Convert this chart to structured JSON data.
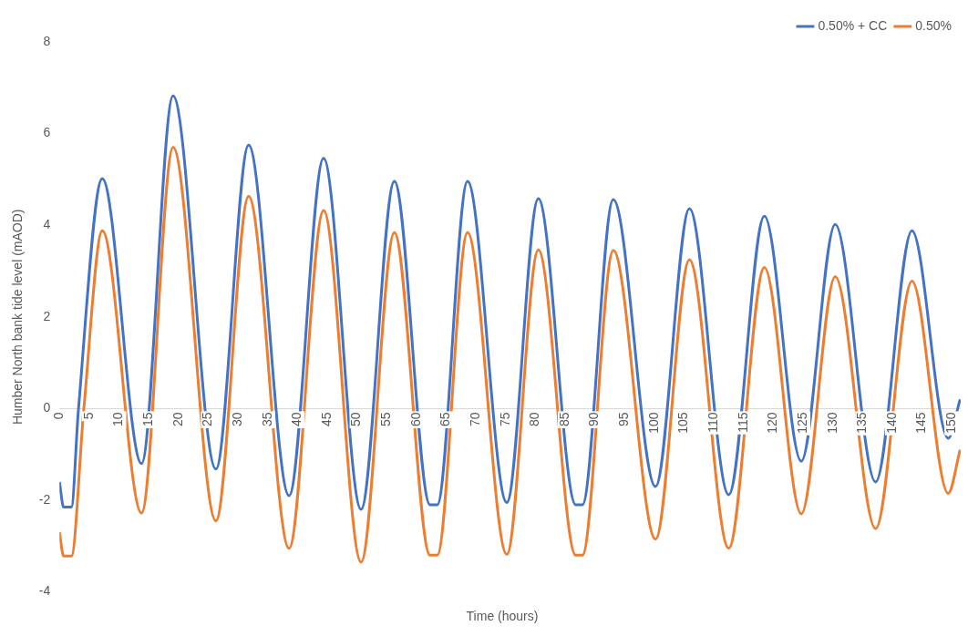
{
  "chart_data": {
    "type": "line",
    "xlabel": "Time (hours)",
    "ylabel": "Humber North bank tide level (mAOD)",
    "xlim": [
      0,
      151.5
    ],
    "xticks": [
      0,
      5,
      10,
      15,
      20,
      25,
      30,
      35,
      40,
      45,
      50,
      55,
      60,
      65,
      70,
      75,
      80,
      85,
      90,
      95,
      100,
      105,
      110,
      115,
      120,
      125,
      130,
      135,
      140,
      145,
      150
    ],
    "ylim": [
      -4,
      8
    ],
    "yticks": [
      -4,
      -2,
      0,
      2,
      4,
      6,
      8
    ],
    "grid": false,
    "legend": "top right",
    "marker": "none",
    "line_style": "solid",
    "series": [
      {
        "name": "0.50% + CC",
        "color": "#4472c4",
        "x": [
          0,
          0.7,
          2,
          3.2,
          7.2,
          13.8,
          19.1,
          26.3,
          31.8,
          38.6,
          44.4,
          50.7,
          56.3,
          62.3,
          63.5,
          68.6,
          75.2,
          80.5,
          86.8,
          87.9,
          93.1,
          100.2,
          105.9,
          112.5,
          118.5,
          124.7,
          130.4,
          137.2,
          143.3,
          149.4,
          151.4
        ],
        "values": [
          -1.6,
          -2.15,
          -2.15,
          0,
          5.02,
          -1.2,
          6.82,
          -1.32,
          5.75,
          -1.9,
          5.46,
          -2.2,
          4.96,
          -2.1,
          -2.1,
          4.96,
          -2.05,
          4.58,
          -2.1,
          -2.1,
          4.56,
          -1.7,
          4.36,
          -1.88,
          4.2,
          -1.15,
          4.02,
          -1.6,
          3.88,
          -0.65,
          0.2
        ]
      },
      {
        "name": "0.50%",
        "color": "#ed7d31",
        "x": [
          0,
          0.7,
          2,
          4.1,
          7.2,
          13.8,
          19.1,
          26.3,
          31.8,
          38.6,
          44.4,
          50.7,
          56.3,
          62.3,
          63.5,
          68.6,
          75.2,
          80.5,
          86.8,
          87.9,
          93.1,
          100.2,
          105.9,
          112.5,
          118.5,
          124.7,
          130.4,
          137.2,
          143.3,
          149.4,
          151.4
        ],
        "values": [
          -2.7,
          -3.22,
          -3.22,
          0,
          3.88,
          -2.28,
          5.7,
          -2.45,
          4.63,
          -3.05,
          4.32,
          -3.35,
          3.84,
          -3.2,
          -3.2,
          3.84,
          -3.18,
          3.46,
          -3.2,
          -3.2,
          3.45,
          -2.85,
          3.25,
          -3.05,
          3.08,
          -2.3,
          2.88,
          -2.62,
          2.78,
          -1.85,
          -0.9
        ]
      }
    ]
  }
}
